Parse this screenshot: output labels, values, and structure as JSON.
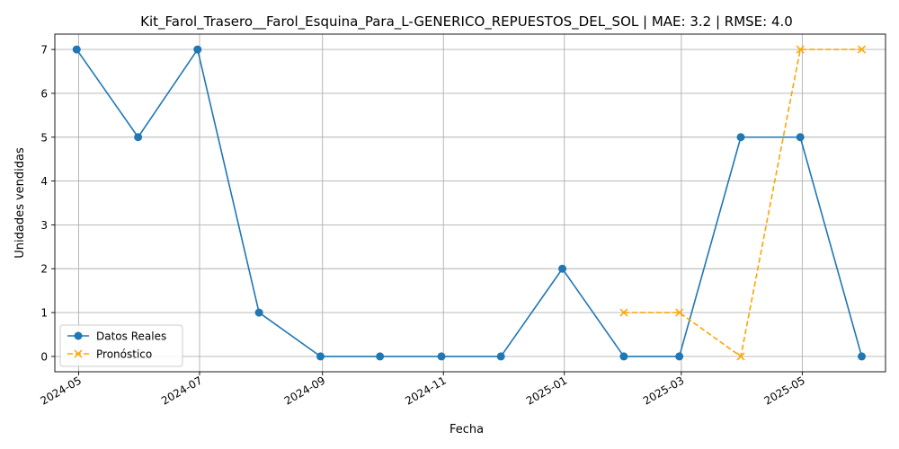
{
  "chart_data": {
    "type": "line",
    "title": "Kit_Farol_Trasero__Farol_Esquina_Para_L-GENERICO_REPUESTOS_DEL_SOL | MAE: 3.2 | RMSE: 4.0",
    "xlabel": "Fecha",
    "ylabel": "Unidades vendidas",
    "xlim": [
      "2024-04-19",
      "2025-06-12"
    ],
    "ylim": [
      -0.35,
      7.35
    ],
    "x_ticks": [
      "2024-05-01",
      "2024-07-01",
      "2024-09-01",
      "2024-11-01",
      "2025-01-01",
      "2025-03-01",
      "2025-05-01"
    ],
    "x_tick_labels": [
      "2024-05",
      "2024-07",
      "2024-09",
      "2024-11",
      "2025-01",
      "2025-03",
      "2025-05"
    ],
    "y_ticks": [
      0,
      1,
      2,
      3,
      4,
      5,
      6,
      7
    ],
    "grid": true,
    "legend_position": "lower-left",
    "series": [
      {
        "name": "Datos Reales",
        "color": "#1f77b4",
        "line_style": "solid",
        "marker": "circle",
        "x": [
          "2024-04-30",
          "2024-05-31",
          "2024-06-30",
          "2024-07-31",
          "2024-08-31",
          "2024-09-30",
          "2024-10-31",
          "2024-11-30",
          "2024-12-31",
          "2025-01-31",
          "2025-02-28",
          "2025-03-31",
          "2025-04-30",
          "2025-05-31"
        ],
        "y": [
          7,
          5,
          7,
          1,
          0,
          0,
          0,
          0,
          2,
          0,
          0,
          5,
          5,
          0
        ]
      },
      {
        "name": "Pronóstico",
        "color": "#ffa500",
        "line_style": "dashed",
        "marker": "x",
        "x": [
          "2025-01-31",
          "2025-02-28",
          "2025-03-31",
          "2025-04-30",
          "2025-05-31"
        ],
        "y": [
          1,
          1,
          0,
          7,
          7
        ]
      }
    ]
  }
}
